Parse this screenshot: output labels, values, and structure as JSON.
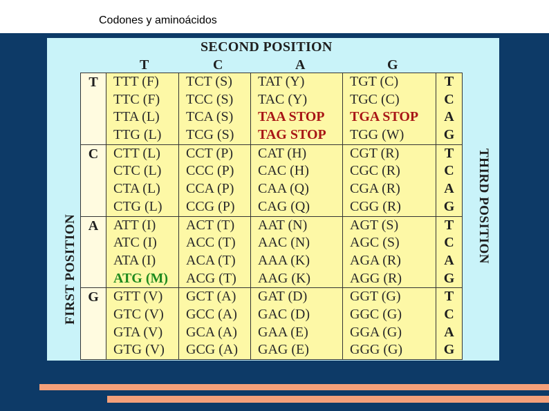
{
  "slide": {
    "title": "Codones y aminoácidos"
  },
  "table": {
    "second_position_label": "SECOND POSITION",
    "first_position_label": "FIRST POSITION",
    "third_position_label": "THIRD POSITION",
    "second_letters": [
      "T",
      "C",
      "A",
      "G"
    ],
    "third_letters": [
      "T",
      "C",
      "A",
      "G"
    ],
    "rows": [
      {
        "first": "T",
        "cells": [
          [
            "TTT (F)",
            "TTC (F)",
            "TTA (L)",
            "TTG (L)"
          ],
          [
            "TCT (S)",
            "TCC (S)",
            "TCA (S)",
            "TCG (S)"
          ],
          [
            "TAT (Y)",
            "TAC (Y)",
            "TAA STOP",
            "TAG STOP"
          ],
          [
            "TGT (C)",
            "TGC (C)",
            "TGA STOP",
            "TGG (W)"
          ]
        ]
      },
      {
        "first": "C",
        "cells": [
          [
            "CTT (L)",
            "CTC (L)",
            "CTA (L)",
            "CTG (L)"
          ],
          [
            "CCT (P)",
            "CCC (P)",
            "CCA (P)",
            "CCG (P)"
          ],
          [
            "CAT (H)",
            "CAC (H)",
            "CAA (Q)",
            "CAG (Q)"
          ],
          [
            "CGT (R)",
            "CGC (R)",
            "CGA (R)",
            "CGG (R)"
          ]
        ]
      },
      {
        "first": "A",
        "cells": [
          [
            "ATT (I)",
            "ATC (I)",
            "ATA (I)",
            "ATG (M)"
          ],
          [
            "ACT (T)",
            "ACC (T)",
            "ACA (T)",
            "ACG (T)"
          ],
          [
            "AAT (N)",
            "AAC (N)",
            "AAA (K)",
            "AAG (K)"
          ],
          [
            "AGT (S)",
            "AGC (S)",
            "AGA (R)",
            "AGG (R)"
          ]
        ]
      },
      {
        "first": "G",
        "cells": [
          [
            "GTT (V)",
            "GTC (V)",
            "GTA (V)",
            "GTG (V)"
          ],
          [
            "GCT (A)",
            "GCC (A)",
            "GCA (A)",
            "GCG (A)"
          ],
          [
            "GAT (D)",
            "GAC (D)",
            "GAA (E)",
            "GAG (E)"
          ],
          [
            "GGT (G)",
            "GGC (G)",
            "GGA (G)",
            "GGG (G)"
          ]
        ]
      }
    ],
    "colors": {
      "stop": "#a81616",
      "start": "#1e8a1e",
      "cell_bg": "#fdf8a6",
      "panel_bg": "#c9f3f9"
    }
  }
}
